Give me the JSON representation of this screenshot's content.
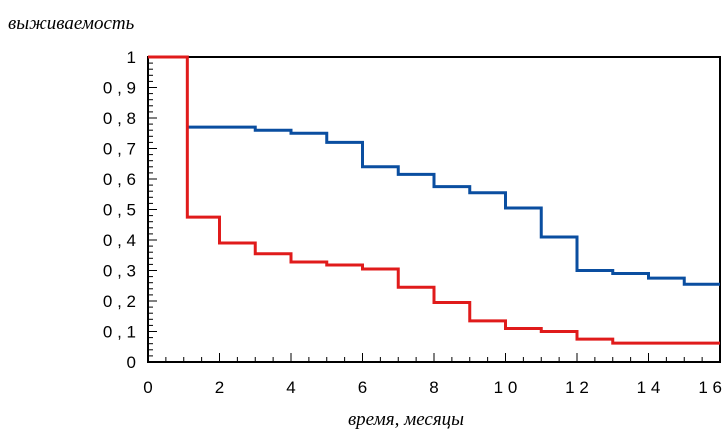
{
  "chart_data": {
    "type": "line",
    "title": "",
    "xlabel": "время, месяцы",
    "ylabel": "выживаемость",
    "xlim": [
      0,
      16
    ],
    "ylim": [
      0,
      1
    ],
    "x_ticks": [
      0,
      2,
      4,
      6,
      8,
      10,
      12,
      14,
      16
    ],
    "x_tick_labels": [
      "0",
      "2",
      "4",
      "6",
      "8",
      "1 0",
      "1 2",
      "1 4",
      "1 6"
    ],
    "y_ticks": [
      0,
      0.1,
      0.2,
      0.3,
      0.4,
      0.5,
      0.6,
      0.7,
      0.8,
      0.9,
      1
    ],
    "y_tick_labels": [
      "0",
      "0 , 1",
      "0 , 2",
      "0 , 3",
      "0 , 4",
      "0 , 5",
      "0 , 6",
      "0 , 7",
      "0 , 8",
      "0 , 9",
      "1"
    ],
    "grid": false,
    "legend": "none",
    "step": true,
    "series": [
      {
        "color": "#0a4ea0",
        "x": [
          1.1,
          2,
          3,
          4,
          5,
          6,
          7,
          8,
          9,
          10,
          11,
          12,
          13,
          14,
          15,
          16
        ],
        "y": [
          0.77,
          0.77,
          0.76,
          0.75,
          0.72,
          0.64,
          0.615,
          0.575,
          0.555,
          0.505,
          0.41,
          0.3,
          0.29,
          0.275,
          0.255,
          0.255
        ]
      },
      {
        "color": "#e01b1b",
        "x": [
          0,
          1.1,
          2,
          3,
          4,
          5,
          6,
          7,
          8,
          9,
          10,
          11,
          12,
          13,
          14,
          15,
          16
        ],
        "y": [
          1.0,
          0.475,
          0.39,
          0.355,
          0.328,
          0.318,
          0.305,
          0.245,
          0.195,
          0.135,
          0.11,
          0.1,
          0.075,
          0.062,
          0.062,
          0.062,
          0.062
        ]
      }
    ]
  }
}
